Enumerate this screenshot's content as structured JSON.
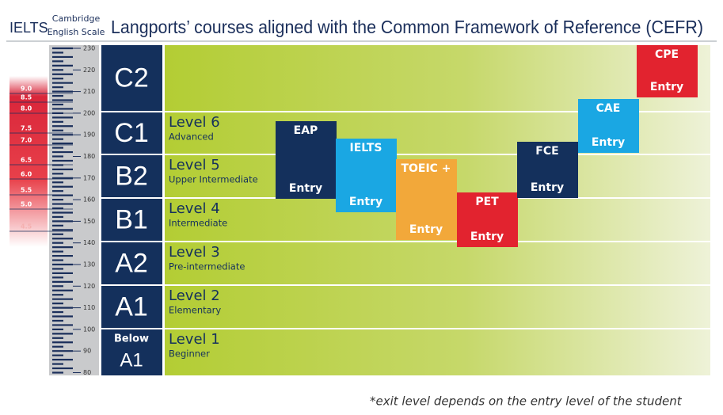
{
  "header": {
    "ielts_label": "IELTS",
    "scale_label": [
      "Cambridge",
      "English Scale"
    ],
    "title": "Langports’ courses aligned with the Common Framework of Reference (CEFR)"
  },
  "scale_ticks": [
    "230",
    "220",
    "210",
    "200",
    "190",
    "180",
    "170",
    "160",
    "150",
    "140",
    "130",
    "120",
    "110",
    "100",
    "90",
    "80"
  ],
  "ielts_bands": [
    "9.0",
    "8.5",
    "8.0",
    "7.5",
    "7.0",
    "6.5",
    "6.0",
    "5.5",
    "5.0",
    "4.5"
  ],
  "levels": [
    {
      "cefr": [
        "C2"
      ]
    },
    {
      "cefr": [
        "C1"
      ],
      "level": "Level 6",
      "description": "Advanced"
    },
    {
      "cefr": [
        "B2"
      ],
      "level": "Level 5",
      "description": "Upper Intermediate"
    },
    {
      "cefr": [
        "B1"
      ],
      "level": "Level 4",
      "description": "Intermediate"
    },
    {
      "cefr": [
        "A2"
      ],
      "level": "Level 3",
      "description": "Pre-intermediate"
    },
    {
      "cefr": [
        "A1"
      ],
      "level": "Level 2",
      "description": "Elementary"
    },
    {
      "cefr": [
        "Below",
        "A1"
      ],
      "level": "Level 1",
      "description": "Beginner"
    }
  ],
  "courses": [
    {
      "name": "EAP",
      "entry": "Entry"
    },
    {
      "name": "IELTS",
      "entry": "Entry"
    },
    {
      "name": "TOEIC +",
      "entry": "Entry"
    },
    {
      "name": "PET",
      "entry": "Entry"
    },
    {
      "name": "FCE",
      "entry": "Entry"
    },
    {
      "name": "CAE",
      "entry": "Entry"
    },
    {
      "name": "CPE",
      "entry": "Entry"
    }
  ],
  "footer_note": "*exit level depends on the entry level of the student"
}
